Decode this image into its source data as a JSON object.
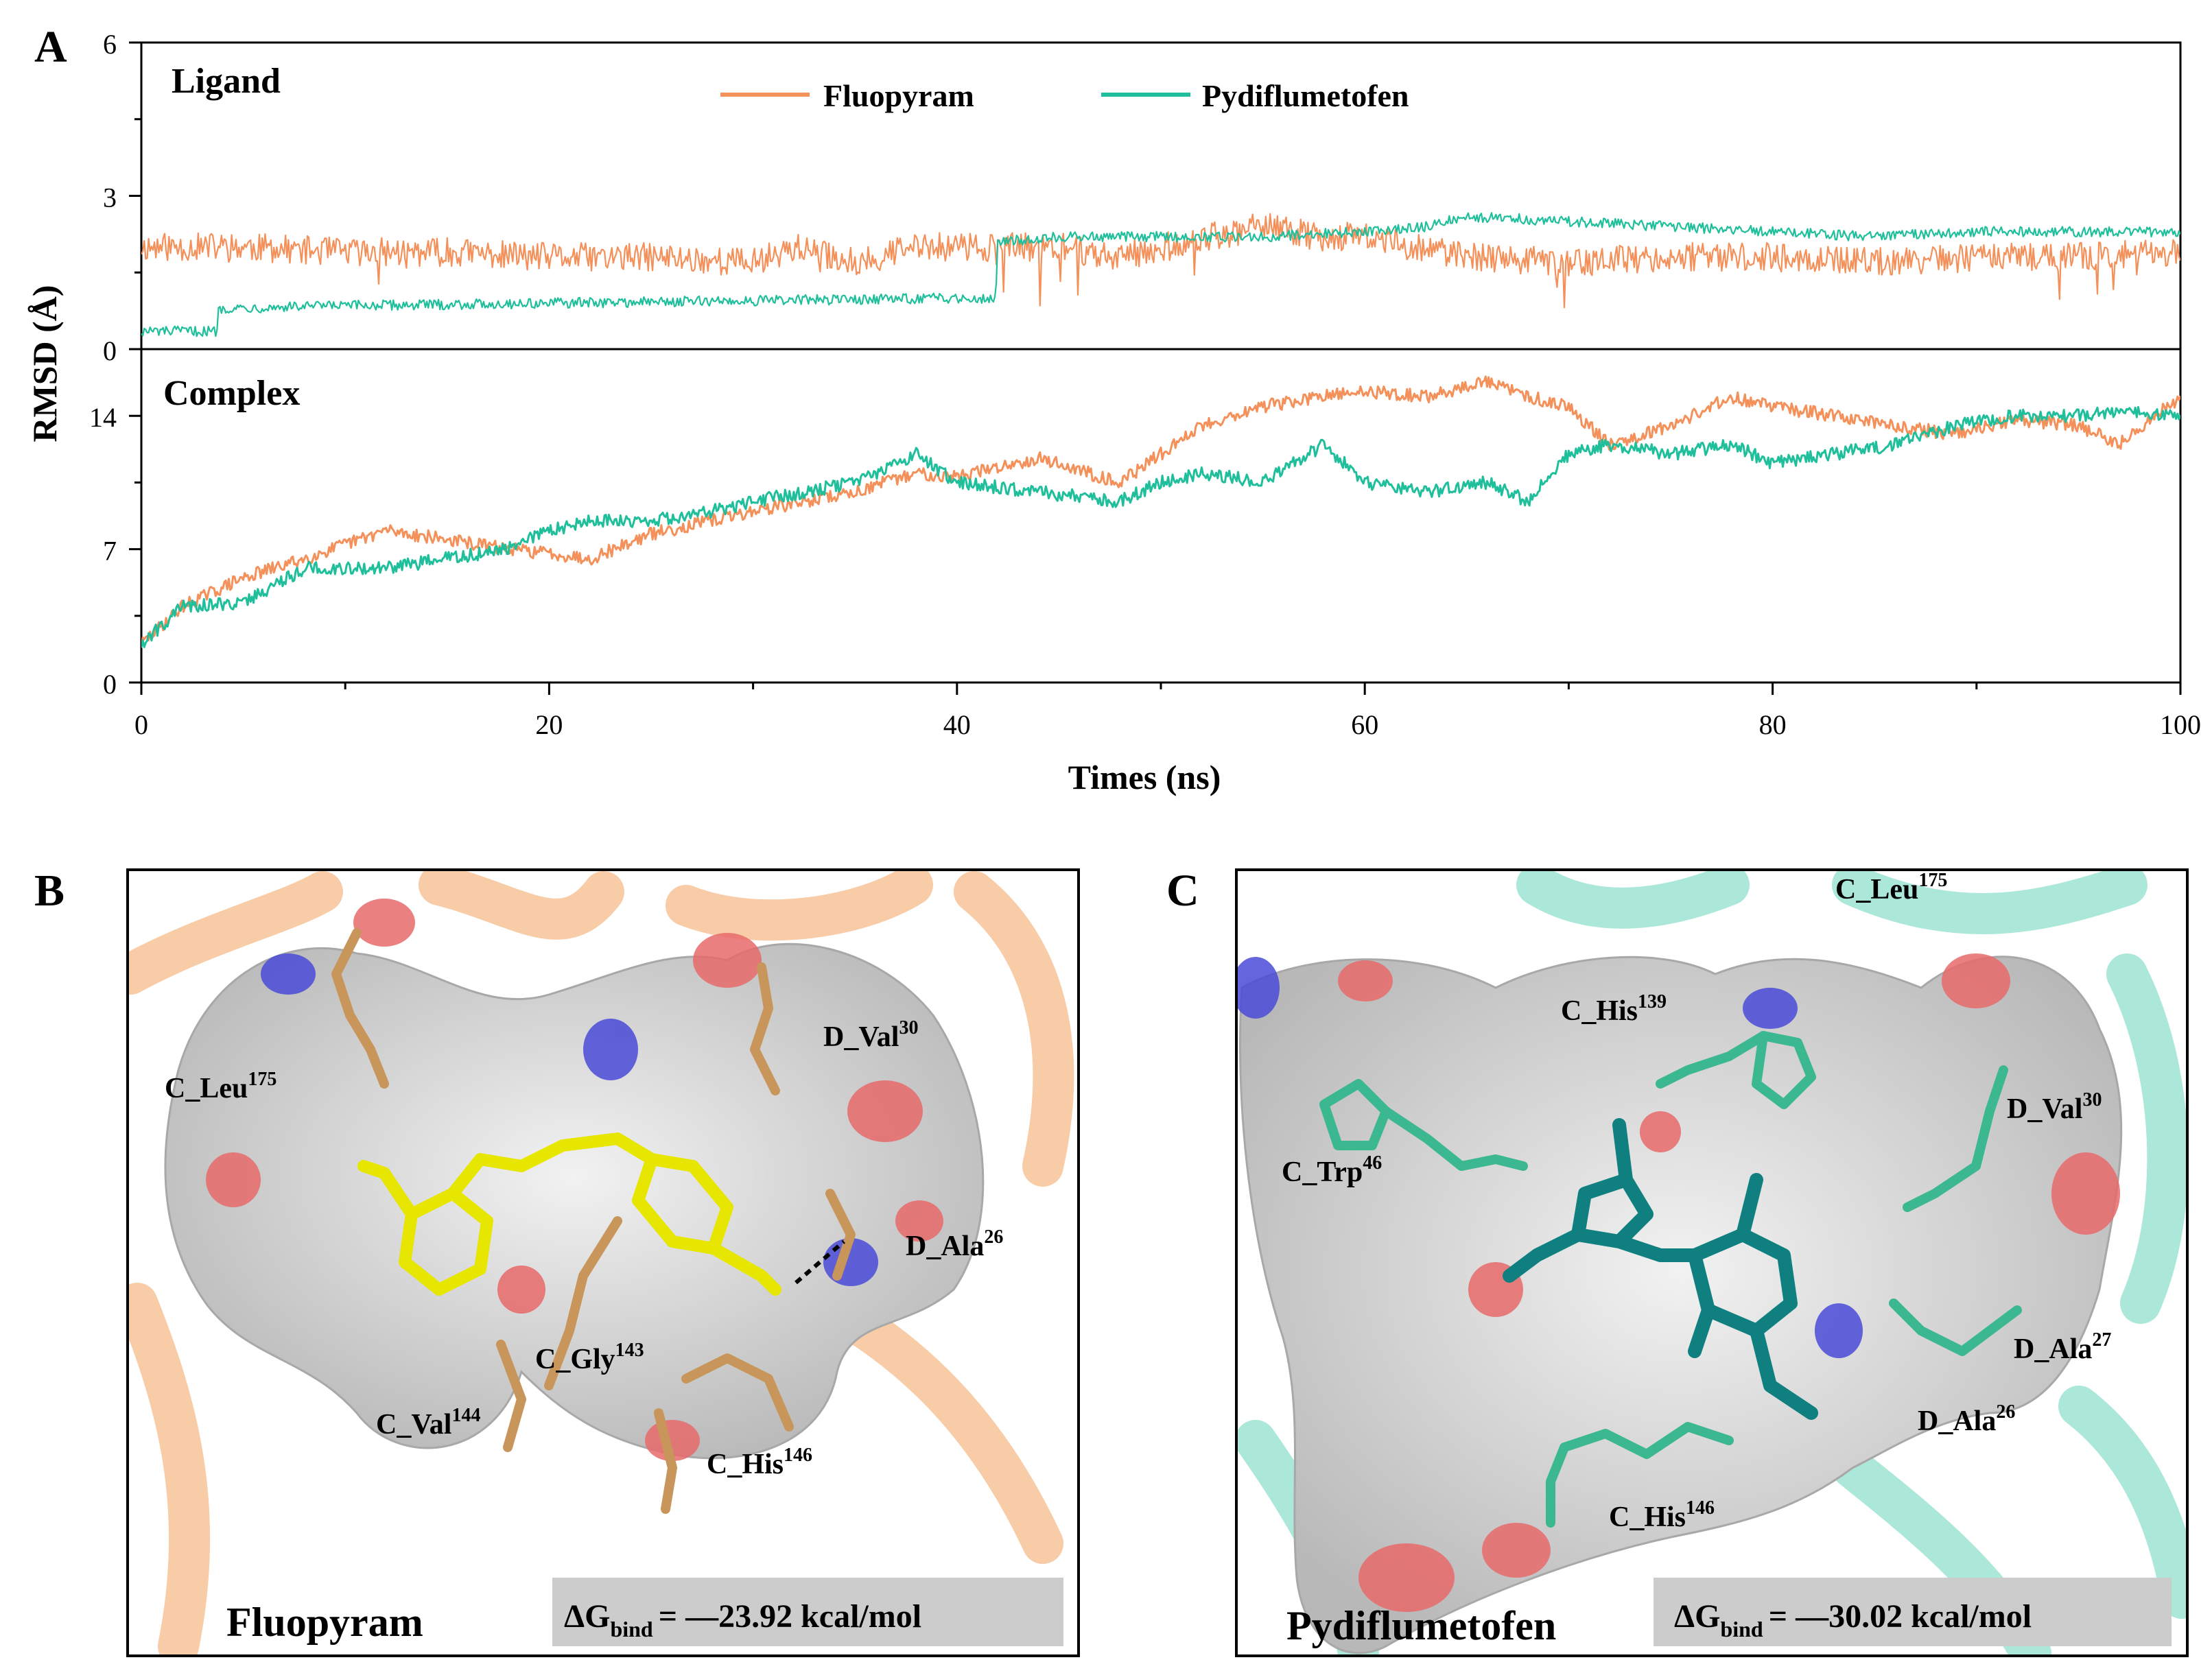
{
  "panels": {
    "A": {
      "letter": "A",
      "ylabel": "RMSD (Å)",
      "xlabel": "Times (ns)",
      "legend": [
        "Fluopyram",
        "Pydiflumetofen"
      ]
    },
    "B": {
      "letter": "B",
      "name": "Fluopyram",
      "dg_prefix": "ΔG",
      "dg_sub": "bind",
      "dg_value": "= —23.92 kcal/mol"
    },
    "C": {
      "letter": "C",
      "name": "Pydiflumetofen",
      "dg_prefix": "ΔG",
      "dg_sub": "bind",
      "dg_value": "= —30.02 kcal/mol"
    }
  },
  "residues": {
    "B": [
      {
        "chain": "C_Leu",
        "num": "175"
      },
      {
        "chain": "D_Val",
        "num": "30"
      },
      {
        "chain": "D_Ala",
        "num": "26"
      },
      {
        "chain": "C_Gly",
        "num": "143"
      },
      {
        "chain": "C_Val",
        "num": "144"
      },
      {
        "chain": "C_His",
        "num": "146"
      }
    ],
    "C": [
      {
        "chain": "C_Leu",
        "num": "175"
      },
      {
        "chain": "C_His",
        "num": "139"
      },
      {
        "chain": "C_Trp",
        "num": "46"
      },
      {
        "chain": "D_Val",
        "num": "30"
      },
      {
        "chain": "D_Ala",
        "num": "27"
      },
      {
        "chain": "D_Ala",
        "num": "26"
      },
      {
        "chain": "C_His",
        "num": "146"
      }
    ]
  },
  "colors": {
    "fluopyram": "#f4905a",
    "pydiflumetofen": "#1fbf9c",
    "surface": "#d9d9d9",
    "oxygen": "#e86a6a",
    "nitrogen": "#4a4ad8",
    "ligandB": "#e6e600",
    "ligandC": "#0f7f7f",
    "ribbonB": "#f2a35e",
    "ribbonC": "#5ad2b4",
    "residueB": "#c8955a",
    "residueC": "#3cb890"
  },
  "chart_data": [
    {
      "type": "line",
      "title": "Ligand",
      "xlim": [
        0,
        100
      ],
      "ylim": [
        0,
        6
      ],
      "yticks": [
        0,
        3,
        6
      ],
      "xticks": [
        0,
        20,
        40,
        60,
        80,
        100
      ],
      "series": [
        {
          "name": "Fluopyram",
          "x": [
            0,
            5,
            10,
            15,
            20,
            25,
            30,
            32,
            35,
            38,
            42,
            45,
            48,
            50,
            55,
            58,
            60,
            65,
            70,
            75,
            80,
            85,
            90,
            95,
            100
          ],
          "y": [
            2.0,
            2.0,
            1.9,
            1.9,
            1.8,
            1.8,
            1.7,
            2.0,
            1.7,
            2.0,
            2.0,
            2.0,
            1.8,
            2.0,
            2.4,
            2.2,
            2.2,
            1.8,
            1.7,
            1.8,
            1.8,
            1.7,
            1.8,
            1.8,
            1.9
          ]
        },
        {
          "name": "Pydiflumetofen",
          "x": [
            0,
            3.7,
            3.8,
            10,
            20,
            30,
            40,
            41.9,
            42,
            45,
            50,
            55,
            60,
            63,
            65,
            70,
            75,
            80,
            85,
            90,
            95,
            100
          ],
          "y": [
            0.35,
            0.35,
            0.8,
            0.85,
            0.9,
            0.95,
            1.0,
            1.0,
            2.1,
            2.2,
            2.2,
            2.2,
            2.3,
            2.4,
            2.6,
            2.5,
            2.4,
            2.3,
            2.2,
            2.3,
            2.3,
            2.3
          ]
        }
      ]
    },
    {
      "type": "line",
      "title": "Complex",
      "xlim": [
        0,
        100
      ],
      "ylim": [
        0,
        17.5
      ],
      "yticks": [
        0,
        7,
        14
      ],
      "xticks": [
        0,
        20,
        40,
        60,
        80,
        100
      ],
      "series": [
        {
          "name": "Fluopyram",
          "x": [
            0,
            2,
            5,
            8,
            12,
            15,
            18,
            20,
            22,
            25,
            28,
            30,
            35,
            38,
            40,
            44,
            48,
            50,
            52,
            55,
            58,
            60,
            63,
            66,
            68,
            70,
            72,
            75,
            78,
            80,
            83,
            86,
            89,
            92,
            95,
            97,
            100
          ],
          "y": [
            2.0,
            4.0,
            5.5,
            6.5,
            8.0,
            7.5,
            7.0,
            6.8,
            6.5,
            7.8,
            8.5,
            9.0,
            10.0,
            11.0,
            10.8,
            11.8,
            10.5,
            12.0,
            13.5,
            14.5,
            15.0,
            15.3,
            15.0,
            15.8,
            15.0,
            14.5,
            12.5,
            13.5,
            15.0,
            14.5,
            14.0,
            13.5,
            13.0,
            13.8,
            13.5,
            12.5,
            15.0
          ]
        },
        {
          "name": "Pydiflumetofen",
          "x": [
            0,
            2,
            5,
            8,
            12,
            15,
            18,
            20,
            22,
            25,
            28,
            30,
            35,
            38,
            40,
            44,
            48,
            50,
            52,
            55,
            58,
            60,
            63,
            66,
            68,
            70,
            72,
            75,
            78,
            80,
            83,
            86,
            89,
            92,
            95,
            97,
            100
          ],
          "y": [
            2.0,
            4.0,
            4.2,
            6.0,
            6.0,
            6.5,
            7.0,
            8.0,
            8.5,
            8.5,
            9.0,
            9.5,
            10.5,
            12.0,
            10.5,
            10.0,
            9.5,
            10.5,
            11.0,
            10.5,
            12.5,
            10.5,
            10.0,
            10.5,
            9.5,
            12.0,
            12.5,
            12.0,
            12.5,
            11.5,
            12.0,
            12.5,
            13.5,
            14.0,
            14.0,
            14.3,
            14.0
          ]
        }
      ]
    }
  ]
}
